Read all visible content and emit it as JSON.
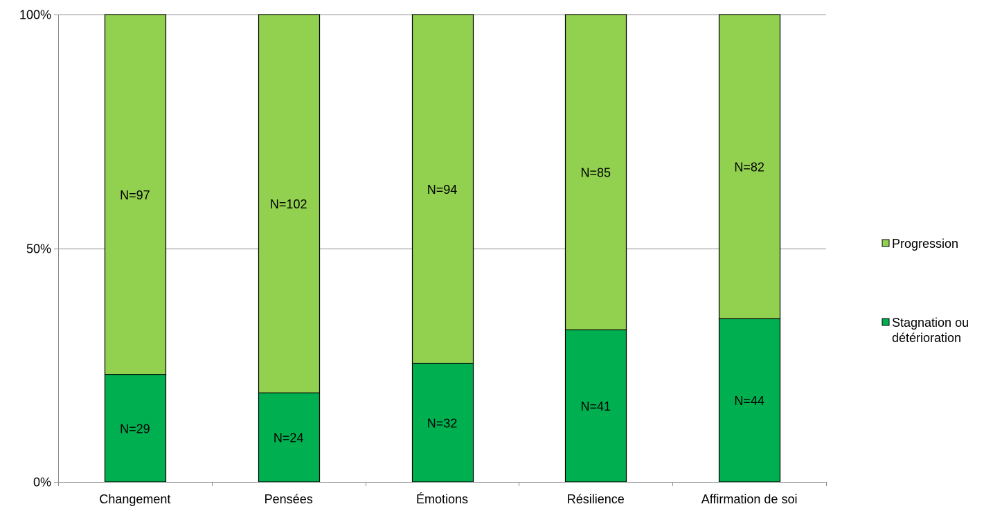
{
  "chart_data": {
    "type": "bar",
    "stacked": true,
    "normalized": true,
    "categories": [
      "Changement",
      "Pensées",
      "Émotions",
      "Résilience",
      "Affirmation de soi"
    ],
    "series": [
      {
        "name": "Stagnation ou détérioration",
        "name_lines": [
          "Stagnation ou",
          "détérioration"
        ],
        "color": "#00b050",
        "values": [
          29,
          24,
          32,
          41,
          44
        ],
        "labels": [
          "N=29",
          "N=24",
          "N=32",
          "N=41",
          "N=44"
        ]
      },
      {
        "name": "Progression",
        "name_lines": [
          "Progression"
        ],
        "color": "#92d050",
        "values": [
          97,
          102,
          94,
          85,
          82
        ],
        "labels": [
          "N=97",
          "N=102",
          "N=94",
          "N=85",
          "N=82"
        ]
      }
    ],
    "y_axis": {
      "ticks": [
        0,
        50,
        100
      ],
      "tick_labels": [
        "0%",
        "50%",
        "100%"
      ],
      "ylim": [
        0,
        100
      ]
    },
    "grid": true,
    "legend": {
      "placement": "right",
      "order": [
        "Progression",
        "Stagnation ou détérioration"
      ]
    },
    "xlabel": "",
    "ylabel": "",
    "title": ""
  }
}
